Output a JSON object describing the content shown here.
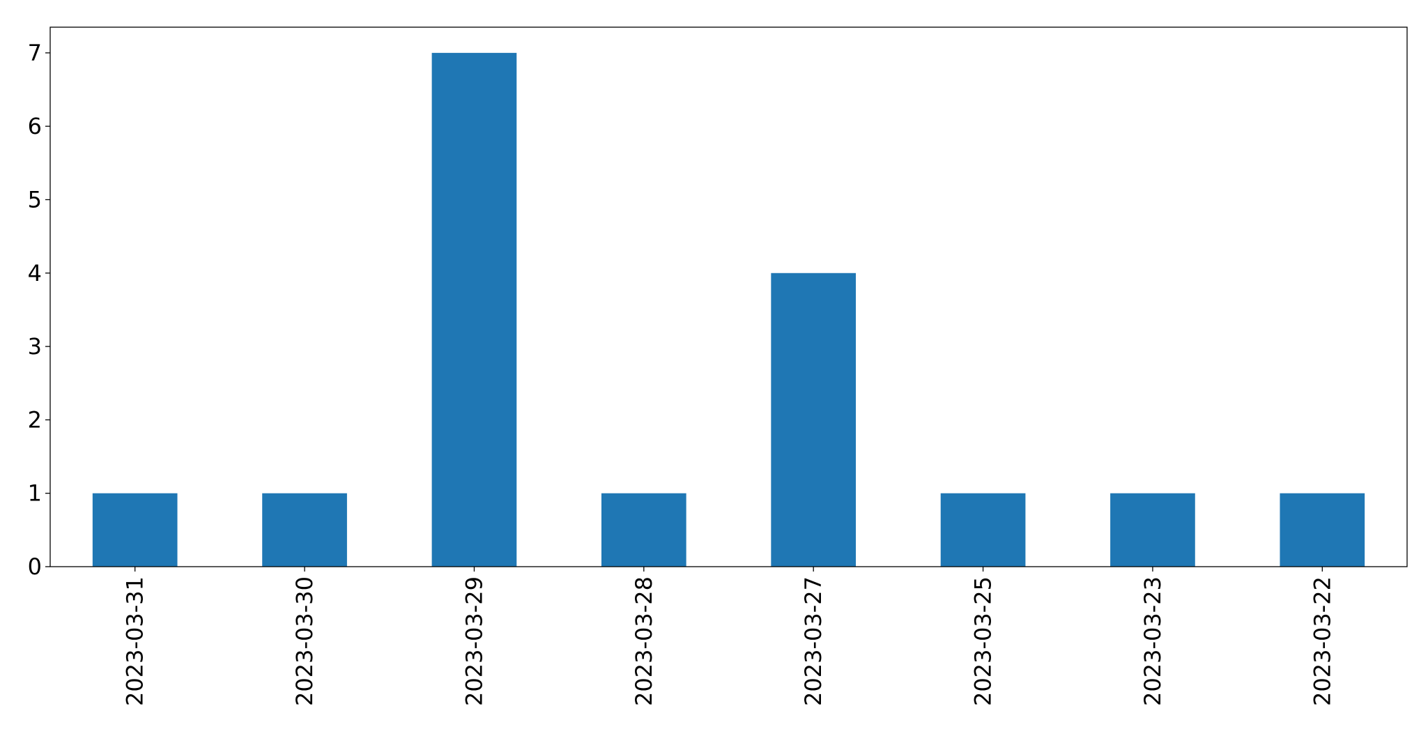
{
  "chart_data": {
    "type": "bar",
    "categories": [
      "2023-03-31",
      "2023-03-30",
      "2023-03-29",
      "2023-03-28",
      "2023-03-27",
      "2023-03-25",
      "2023-03-23",
      "2023-03-22"
    ],
    "values": [
      1,
      1,
      7,
      1,
      4,
      1,
      1,
      1
    ],
    "title": "",
    "xlabel": "",
    "ylabel": "",
    "ylim": [
      0,
      7.35
    ],
    "yticks": [
      0,
      1,
      2,
      3,
      4,
      5,
      6,
      7
    ],
    "grid": false,
    "bar_color": "#1f77b4",
    "x_tick_rotation": 90
  }
}
